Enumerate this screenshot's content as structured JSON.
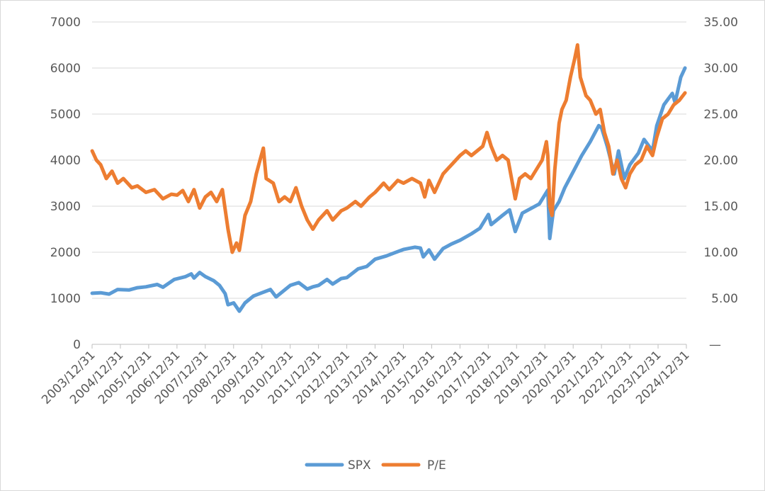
{
  "chart_data": {
    "type": "line",
    "title": "",
    "xlabel": "",
    "ylabel": "",
    "y_left_ticks": [
      "0",
      "1000",
      "2000",
      "3000",
      "4000",
      "5000",
      "6000",
      "7000"
    ],
    "y_left_range": [
      0,
      7000
    ],
    "y_right_ticks": [
      "—",
      "5.00",
      "10.00",
      "15.00",
      "20.00",
      "25.00",
      "30.00",
      "35.00"
    ],
    "y_right_range": [
      0,
      35
    ],
    "x_ticks": [
      "2003/12/31",
      "2004/12/31",
      "2005/12/31",
      "2006/12/31",
      "2007/12/31",
      "2008/12/31",
      "2009/12/31",
      "2010/12/31",
      "2011/12/31",
      "2012/12/31",
      "2013/12/31",
      "2014/12/31",
      "2015/12/31",
      "2016/12/31",
      "2017/12/31",
      "2018/12/31",
      "2019/12/31",
      "2020/12/31",
      "2021/12/31",
      "2022/12/31",
      "2023/12/31",
      "2024/12/31"
    ],
    "x_range": [
      2003.997,
      2024.997
    ],
    "grid": "horizontal",
    "legend_position": "bottom",
    "series": [
      {
        "name": "SPX",
        "axis": "left",
        "color": "#5b9bd5",
        "points": [
          [
            2004.0,
            1110
          ],
          [
            2004.3,
            1120
          ],
          [
            2004.6,
            1090
          ],
          [
            2004.9,
            1190
          ],
          [
            2005.3,
            1180
          ],
          [
            2005.6,
            1230
          ],
          [
            2005.9,
            1250
          ],
          [
            2006.3,
            1300
          ],
          [
            2006.5,
            1240
          ],
          [
            2006.9,
            1410
          ],
          [
            2007.3,
            1470
          ],
          [
            2007.5,
            1530
          ],
          [
            2007.6,
            1440
          ],
          [
            2007.8,
            1560
          ],
          [
            2008.0,
            1470
          ],
          [
            2008.3,
            1380
          ],
          [
            2008.5,
            1280
          ],
          [
            2008.7,
            1100
          ],
          [
            2008.8,
            860
          ],
          [
            2009.0,
            900
          ],
          [
            2009.2,
            720
          ],
          [
            2009.4,
            900
          ],
          [
            2009.7,
            1050
          ],
          [
            2010.0,
            1120
          ],
          [
            2010.3,
            1190
          ],
          [
            2010.5,
            1030
          ],
          [
            2010.8,
            1180
          ],
          [
            2011.0,
            1280
          ],
          [
            2011.3,
            1340
          ],
          [
            2011.6,
            1200
          ],
          [
            2011.8,
            1250
          ],
          [
            2012.0,
            1280
          ],
          [
            2012.3,
            1410
          ],
          [
            2012.5,
            1310
          ],
          [
            2012.8,
            1430
          ],
          [
            2013.0,
            1450
          ],
          [
            2013.4,
            1640
          ],
          [
            2013.7,
            1690
          ],
          [
            2014.0,
            1850
          ],
          [
            2014.4,
            1920
          ],
          [
            2014.7,
            1990
          ],
          [
            2015.0,
            2060
          ],
          [
            2015.4,
            2110
          ],
          [
            2015.6,
            2090
          ],
          [
            2015.7,
            1900
          ],
          [
            2015.9,
            2050
          ],
          [
            2016.1,
            1850
          ],
          [
            2016.4,
            2080
          ],
          [
            2016.7,
            2180
          ],
          [
            2017.0,
            2260
          ],
          [
            2017.4,
            2400
          ],
          [
            2017.7,
            2520
          ],
          [
            2018.0,
            2820
          ],
          [
            2018.1,
            2600
          ],
          [
            2018.5,
            2800
          ],
          [
            2018.75,
            2920
          ],
          [
            2018.95,
            2450
          ],
          [
            2019.2,
            2850
          ],
          [
            2019.5,
            2950
          ],
          [
            2019.8,
            3050
          ],
          [
            2020.1,
            3350
          ],
          [
            2020.17,
            2300
          ],
          [
            2020.3,
            2900
          ],
          [
            2020.5,
            3100
          ],
          [
            2020.7,
            3400
          ],
          [
            2021.0,
            3750
          ],
          [
            2021.3,
            4100
          ],
          [
            2021.6,
            4400
          ],
          [
            2021.9,
            4750
          ],
          [
            2022.0,
            4700
          ],
          [
            2022.2,
            4300
          ],
          [
            2022.45,
            3700
          ],
          [
            2022.6,
            4200
          ],
          [
            2022.8,
            3600
          ],
          [
            2023.0,
            3900
          ],
          [
            2023.3,
            4150
          ],
          [
            2023.5,
            4450
          ],
          [
            2023.8,
            4200
          ],
          [
            2023.95,
            4750
          ],
          [
            2024.2,
            5200
          ],
          [
            2024.5,
            5450
          ],
          [
            2024.6,
            5250
          ],
          [
            2024.8,
            5800
          ],
          [
            2024.95,
            6000
          ]
        ]
      },
      {
        "name": "P/E",
        "axis": "right",
        "color": "#ed7d31",
        "points": [
          [
            2004.0,
            21.0
          ],
          [
            2004.15,
            20.0
          ],
          [
            2004.3,
            19.5
          ],
          [
            2004.5,
            18.0
          ],
          [
            2004.7,
            18.8
          ],
          [
            2004.9,
            17.5
          ],
          [
            2005.1,
            18.0
          ],
          [
            2005.4,
            17.0
          ],
          [
            2005.6,
            17.2
          ],
          [
            2005.9,
            16.5
          ],
          [
            2006.2,
            16.8
          ],
          [
            2006.5,
            15.8
          ],
          [
            2006.8,
            16.3
          ],
          [
            2007.0,
            16.2
          ],
          [
            2007.2,
            16.7
          ],
          [
            2007.4,
            15.5
          ],
          [
            2007.6,
            16.8
          ],
          [
            2007.8,
            14.8
          ],
          [
            2008.0,
            16.0
          ],
          [
            2008.2,
            16.5
          ],
          [
            2008.4,
            15.5
          ],
          [
            2008.6,
            16.8
          ],
          [
            2008.8,
            12.5
          ],
          [
            2008.95,
            10.0
          ],
          [
            2009.1,
            11.0
          ],
          [
            2009.2,
            10.2
          ],
          [
            2009.4,
            14.0
          ],
          [
            2009.6,
            15.5
          ],
          [
            2009.8,
            18.5
          ],
          [
            2009.95,
            20.2
          ],
          [
            2010.05,
            21.3
          ],
          [
            2010.15,
            18.0
          ],
          [
            2010.4,
            17.5
          ],
          [
            2010.6,
            15.5
          ],
          [
            2010.8,
            16.0
          ],
          [
            2011.0,
            15.5
          ],
          [
            2011.2,
            17.0
          ],
          [
            2011.4,
            15.0
          ],
          [
            2011.6,
            13.5
          ],
          [
            2011.8,
            12.5
          ],
          [
            2012.0,
            13.5
          ],
          [
            2012.3,
            14.5
          ],
          [
            2012.5,
            13.5
          ],
          [
            2012.8,
            14.5
          ],
          [
            2013.0,
            14.8
          ],
          [
            2013.3,
            15.5
          ],
          [
            2013.5,
            15.0
          ],
          [
            2013.8,
            16.0
          ],
          [
            2014.0,
            16.5
          ],
          [
            2014.3,
            17.5
          ],
          [
            2014.5,
            16.8
          ],
          [
            2014.8,
            17.8
          ],
          [
            2015.0,
            17.5
          ],
          [
            2015.3,
            18.0
          ],
          [
            2015.6,
            17.5
          ],
          [
            2015.75,
            16.0
          ],
          [
            2015.9,
            17.8
          ],
          [
            2016.1,
            16.5
          ],
          [
            2016.4,
            18.5
          ],
          [
            2016.7,
            19.5
          ],
          [
            2017.0,
            20.5
          ],
          [
            2017.2,
            21.0
          ],
          [
            2017.4,
            20.5
          ],
          [
            2017.6,
            21.0
          ],
          [
            2017.8,
            21.5
          ],
          [
            2017.95,
            23.0
          ],
          [
            2018.1,
            21.5
          ],
          [
            2018.3,
            20.0
          ],
          [
            2018.5,
            20.5
          ],
          [
            2018.7,
            20.0
          ],
          [
            2018.85,
            17.5
          ],
          [
            2018.95,
            15.8
          ],
          [
            2019.1,
            18.0
          ],
          [
            2019.3,
            18.5
          ],
          [
            2019.5,
            18.0
          ],
          [
            2019.7,
            19.0
          ],
          [
            2019.9,
            20.0
          ],
          [
            2020.05,
            22.0
          ],
          [
            2020.1,
            20.5
          ],
          [
            2020.17,
            15.0
          ],
          [
            2020.25,
            14.0
          ],
          [
            2020.35,
            19.0
          ],
          [
            2020.5,
            24.0
          ],
          [
            2020.6,
            25.5
          ],
          [
            2020.75,
            26.5
          ],
          [
            2020.9,
            29.0
          ],
          [
            2021.05,
            31.0
          ],
          [
            2021.15,
            32.5
          ],
          [
            2021.25,
            29.0
          ],
          [
            2021.45,
            27.0
          ],
          [
            2021.6,
            26.5
          ],
          [
            2021.8,
            25.0
          ],
          [
            2021.95,
            25.5
          ],
          [
            2022.1,
            23.0
          ],
          [
            2022.25,
            21.5
          ],
          [
            2022.4,
            18.5
          ],
          [
            2022.55,
            20.0
          ],
          [
            2022.7,
            18.0
          ],
          [
            2022.85,
            17.0
          ],
          [
            2023.0,
            18.5
          ],
          [
            2023.2,
            19.5
          ],
          [
            2023.4,
            20.0
          ],
          [
            2023.6,
            21.5
          ],
          [
            2023.8,
            20.5
          ],
          [
            2023.95,
            22.5
          ],
          [
            2024.15,
            24.5
          ],
          [
            2024.35,
            25.0
          ],
          [
            2024.55,
            26.0
          ],
          [
            2024.75,
            26.5
          ],
          [
            2024.95,
            27.3
          ]
        ]
      }
    ]
  }
}
